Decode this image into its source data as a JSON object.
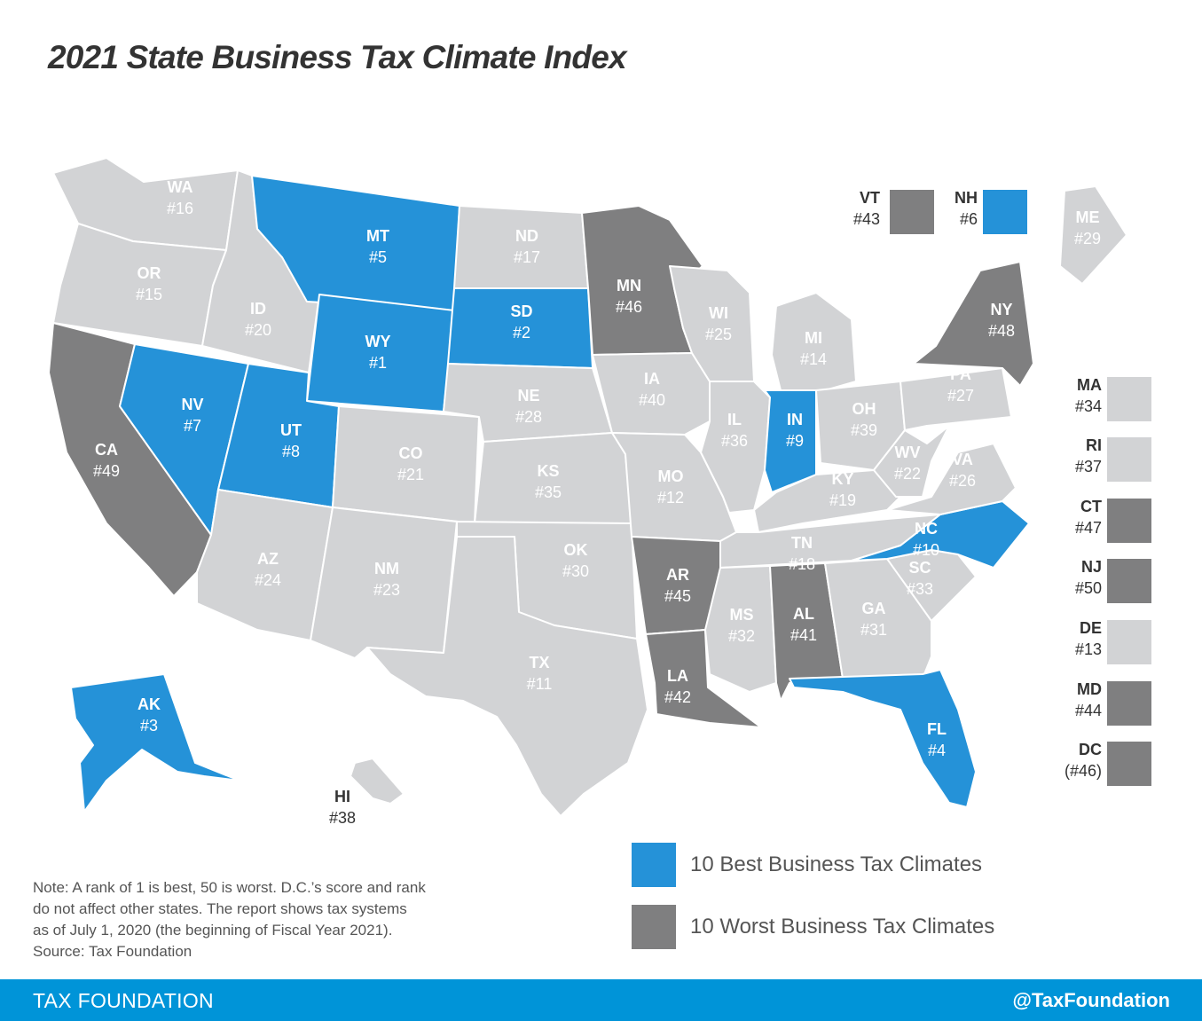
{
  "title": "2021 State Business Tax Climate Index",
  "colors": {
    "best": "#2592d8",
    "worst": "#7f7f80",
    "other": "#d2d3d5",
    "border": "#ffffff",
    "footer": "#0094d8"
  },
  "states": [
    {
      "id": "WA",
      "label": "WA",
      "rank": "#16",
      "group": "other"
    },
    {
      "id": "OR",
      "label": "OR",
      "rank": "#15",
      "group": "other"
    },
    {
      "id": "CA",
      "label": "CA",
      "rank": "#49",
      "group": "worst"
    },
    {
      "id": "ID",
      "label": "ID",
      "rank": "#20",
      "group": "other"
    },
    {
      "id": "NV",
      "label": "NV",
      "rank": "#7",
      "group": "best"
    },
    {
      "id": "MT",
      "label": "MT",
      "rank": "#5",
      "group": "best"
    },
    {
      "id": "WY",
      "label": "WY",
      "rank": "#1",
      "group": "best"
    },
    {
      "id": "UT",
      "label": "UT",
      "rank": "#8",
      "group": "best"
    },
    {
      "id": "AZ",
      "label": "AZ",
      "rank": "#24",
      "group": "other"
    },
    {
      "id": "CO",
      "label": "CO",
      "rank": "#21",
      "group": "other"
    },
    {
      "id": "NM",
      "label": "NM",
      "rank": "#23",
      "group": "other"
    },
    {
      "id": "ND",
      "label": "ND",
      "rank": "#17",
      "group": "other"
    },
    {
      "id": "SD",
      "label": "SD",
      "rank": "#2",
      "group": "best"
    },
    {
      "id": "NE",
      "label": "NE",
      "rank": "#28",
      "group": "other"
    },
    {
      "id": "KS",
      "label": "KS",
      "rank": "#35",
      "group": "other"
    },
    {
      "id": "OK",
      "label": "OK",
      "rank": "#30",
      "group": "other"
    },
    {
      "id": "TX",
      "label": "TX",
      "rank": "#11",
      "group": "other"
    },
    {
      "id": "MN",
      "label": "MN",
      "rank": "#46",
      "group": "worst"
    },
    {
      "id": "IA",
      "label": "IA",
      "rank": "#40",
      "group": "other"
    },
    {
      "id": "MO",
      "label": "MO",
      "rank": "#12",
      "group": "other"
    },
    {
      "id": "AR",
      "label": "AR",
      "rank": "#45",
      "group": "worst"
    },
    {
      "id": "LA",
      "label": "LA",
      "rank": "#42",
      "group": "worst"
    },
    {
      "id": "WI",
      "label": "WI",
      "rank": "#25",
      "group": "other"
    },
    {
      "id": "IL",
      "label": "IL",
      "rank": "#36",
      "group": "other"
    },
    {
      "id": "MI",
      "label": "MI",
      "rank": "#14",
      "group": "other"
    },
    {
      "id": "IN",
      "label": "IN",
      "rank": "#9",
      "group": "best"
    },
    {
      "id": "OH",
      "label": "OH",
      "rank": "#39",
      "group": "other"
    },
    {
      "id": "KY",
      "label": "KY",
      "rank": "#19",
      "group": "other"
    },
    {
      "id": "TN",
      "label": "TN",
      "rank": "#18",
      "group": "other"
    },
    {
      "id": "MS",
      "label": "MS",
      "rank": "#32",
      "group": "other"
    },
    {
      "id": "AL",
      "label": "AL",
      "rank": "#41",
      "group": "worst"
    },
    {
      "id": "GA",
      "label": "GA",
      "rank": "#31",
      "group": "other"
    },
    {
      "id": "FL",
      "label": "FL",
      "rank": "#4",
      "group": "best"
    },
    {
      "id": "SC",
      "label": "SC",
      "rank": "#33",
      "group": "other"
    },
    {
      "id": "NC",
      "label": "NC",
      "rank": "#10",
      "group": "best"
    },
    {
      "id": "VA",
      "label": "VA",
      "rank": "#26",
      "group": "other"
    },
    {
      "id": "WV",
      "label": "WV",
      "rank": "#22",
      "group": "other"
    },
    {
      "id": "PA",
      "label": "PA",
      "rank": "#27",
      "group": "other"
    },
    {
      "id": "NY",
      "label": "NY",
      "rank": "#48",
      "group": "worst"
    },
    {
      "id": "ME",
      "label": "ME",
      "rank": "#29",
      "group": "other"
    },
    {
      "id": "AK",
      "label": "AK",
      "rank": "#3",
      "group": "best"
    },
    {
      "id": "HI",
      "label": "HI",
      "rank": "#38",
      "group": "other"
    }
  ],
  "boxed_states": [
    {
      "id": "VT",
      "label": "VT",
      "rank": "#43",
      "group": "worst"
    },
    {
      "id": "NH",
      "label": "NH",
      "rank": "#6",
      "group": "best"
    },
    {
      "id": "MA",
      "label": "MA",
      "rank": "#34",
      "group": "other"
    },
    {
      "id": "RI",
      "label": "RI",
      "rank": "#37",
      "group": "other"
    },
    {
      "id": "CT",
      "label": "CT",
      "rank": "#47",
      "group": "worst"
    },
    {
      "id": "NJ",
      "label": "NJ",
      "rank": "#50",
      "group": "worst"
    },
    {
      "id": "DE",
      "label": "DE",
      "rank": "#13",
      "group": "other"
    },
    {
      "id": "MD",
      "label": "MD",
      "rank": "#44",
      "group": "worst"
    },
    {
      "id": "DC",
      "label": "DC",
      "rank": "(#46)",
      "group": "worst"
    }
  ],
  "legend": {
    "best": "10 Best Business Tax Climates",
    "worst": "10 Worst Business Tax Climates"
  },
  "note": {
    "line1": "Note: A rank of 1 is best, 50 is worst. D.C.’s score and rank",
    "line2": "do not affect other states. The report shows tax systems",
    "line3": "as of July 1, 2020 (the beginning of Fiscal Year 2021).",
    "source": "Source: Tax Foundation"
  },
  "footer": {
    "left": "TAX FOUNDATION",
    "right": "@TaxFoundation"
  }
}
